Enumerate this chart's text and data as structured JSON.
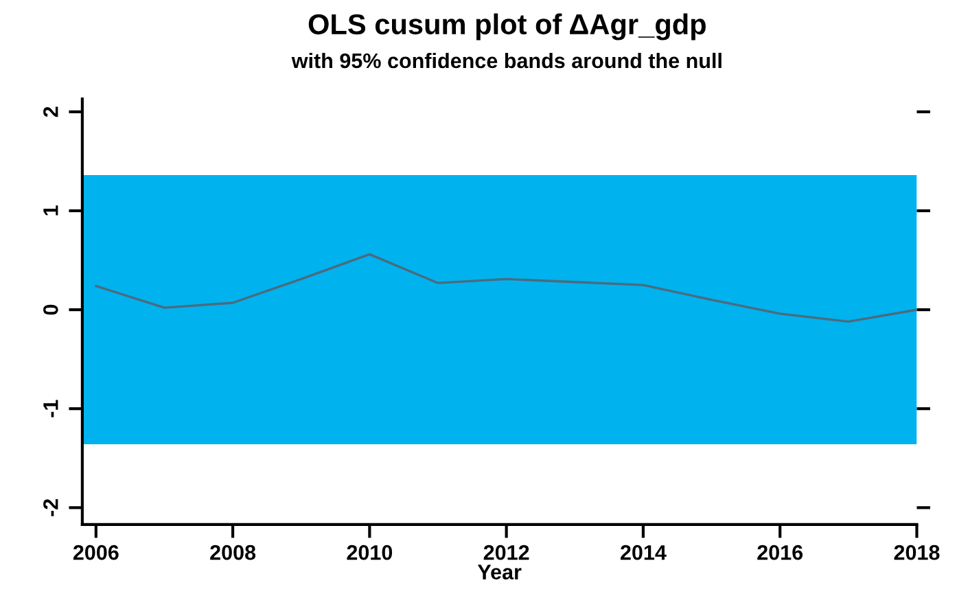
{
  "chart_data": {
    "type": "line",
    "title": "OLS cusum plot of ΔAgr_gdp",
    "subtitle": "with 95% confidence bands around the null",
    "xlabel": "Year",
    "x": [
      2006,
      2007,
      2008,
      2009,
      2010,
      2011,
      2012,
      2013,
      2014,
      2015,
      2016,
      2017,
      2018
    ],
    "series": [
      {
        "color": "#4b6b7d",
        "values": [
          0.24,
          0.02,
          0.07,
          0.31,
          0.56,
          0.27,
          0.31,
          0.28,
          0.25,
          0.1,
          -0.04,
          -0.12,
          0.0
        ]
      }
    ],
    "bands": [
      {
        "axis": "y",
        "from": -1.36,
        "to": 1.36,
        "color": "#00b2ee"
      }
    ],
    "xlim": [
      2005.8,
      2018
    ],
    "xticks": [
      2006,
      2008,
      2010,
      2012,
      2014,
      2016,
      2018
    ],
    "ylim": [
      -2.17,
      2.13
    ],
    "yticks": [
      -2,
      -1,
      0,
      1,
      2
    ],
    "grid": false,
    "legend": false,
    "marker": "none",
    "line_style": "solid"
  }
}
